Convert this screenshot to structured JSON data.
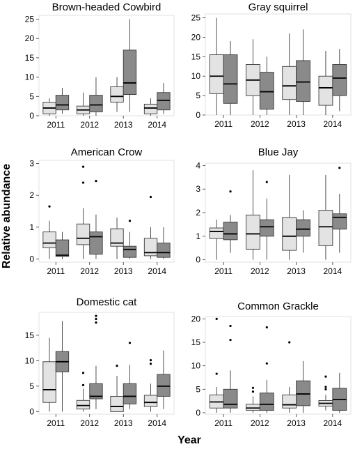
{
  "figure": {
    "xlabel": "Year",
    "ylabel": "Relative abundance"
  },
  "colors": {
    "light_box": "#e3e3e3",
    "dark_box": "#8a8a8a",
    "line": "#3a3a3a",
    "median": "#000000"
  },
  "chart_data": [
    {
      "type": "box",
      "title": "Brown-headed Cowbird",
      "categories": [
        "2011",
        "2012",
        "2013",
        "2014"
      ],
      "yticks": [
        0,
        5,
        10,
        15,
        20,
        25
      ],
      "ylim": [
        0,
        26
      ],
      "series": [
        {
          "style": "light",
          "boxes": [
            {
              "min": 0,
              "q1": 0.5,
              "median": 2,
              "q3": 3.5,
              "max": 4.5,
              "outliers": []
            },
            {
              "min": 0,
              "q1": 0.5,
              "median": 1.5,
              "q3": 2.5,
              "max": 6,
              "outliers": []
            },
            {
              "min": 1,
              "q1": 3.5,
              "median": 5,
              "q3": 7.5,
              "max": 10,
              "outliers": []
            },
            {
              "min": 0,
              "q1": 0.5,
              "median": 2,
              "q3": 3,
              "max": 4.5,
              "outliers": []
            }
          ]
        },
        {
          "style": "dark",
          "boxes": [
            {
              "min": 0.5,
              "q1": 1.5,
              "median": 2.8,
              "q3": 5.3,
              "max": 7.2,
              "outliers": []
            },
            {
              "min": 0,
              "q1": 1,
              "median": 2.8,
              "q3": 5.3,
              "max": 10,
              "outliers": []
            },
            {
              "min": 1,
              "q1": 5.5,
              "median": 8.5,
              "q3": 17,
              "max": 25,
              "outliers": []
            },
            {
              "min": 0.5,
              "q1": 1.5,
              "median": 4,
              "q3": 6,
              "max": 8.5,
              "outliers": []
            }
          ]
        }
      ]
    },
    {
      "type": "box",
      "title": "Gray squirrel",
      "categories": [
        "2011",
        "2012",
        "2013",
        "2014"
      ],
      "yticks": [
        0,
        5,
        10,
        15,
        20,
        25
      ],
      "ylim": [
        0,
        26
      ],
      "series": [
        {
          "style": "light",
          "boxes": [
            {
              "min": 0,
              "q1": 5.5,
              "median": 10,
              "q3": 15.5,
              "max": 25,
              "outliers": []
            },
            {
              "min": 0,
              "q1": 5,
              "median": 9,
              "q3": 13,
              "max": 19.5,
              "outliers": []
            },
            {
              "min": 0,
              "q1": 4,
              "median": 7.5,
              "q3": 12.5,
              "max": 21,
              "outliers": []
            },
            {
              "min": 0,
              "q1": 2.5,
              "median": 7,
              "q3": 10,
              "max": 16.5,
              "outliers": []
            }
          ]
        },
        {
          "style": "dark",
          "boxes": [
            {
              "min": 0,
              "q1": 3,
              "median": 8,
              "q3": 15.5,
              "max": 19,
              "outliers": []
            },
            {
              "min": 0,
              "q1": 1.5,
              "median": 6,
              "q3": 11,
              "max": 15,
              "outliers": []
            },
            {
              "min": 0,
              "q1": 3.5,
              "median": 8.5,
              "q3": 14,
              "max": 22,
              "outliers": []
            },
            {
              "min": 1,
              "q1": 5,
              "median": 9.5,
              "q3": 13,
              "max": 17,
              "outliers": []
            }
          ]
        }
      ]
    },
    {
      "type": "box",
      "title": "American Crow",
      "categories": [
        "2011",
        "2012",
        "2013",
        "2014"
      ],
      "yticks": [
        0,
        1,
        2,
        3
      ],
      "ylim": [
        -0.1,
        3.1
      ],
      "series": [
        {
          "style": "light",
          "boxes": [
            {
              "min": 0,
              "q1": 0.35,
              "median": 0.5,
              "q3": 0.85,
              "max": 1.2,
              "outliers": [
                1.65
              ]
            },
            {
              "min": 0,
              "q1": 0.45,
              "median": 0.65,
              "q3": 1.1,
              "max": 1.6,
              "outliers": [
                2.4,
                2.9
              ]
            },
            {
              "min": 0,
              "q1": 0.4,
              "median": 0.5,
              "q3": 0.95,
              "max": 1.3,
              "outliers": []
            },
            {
              "min": 0,
              "q1": 0.1,
              "median": 0.2,
              "q3": 0.65,
              "max": 1,
              "outliers": [
                1.95
              ]
            }
          ]
        },
        {
          "style": "dark",
          "boxes": [
            {
              "min": 0,
              "q1": 0.08,
              "median": 0.12,
              "q3": 0.6,
              "max": 0.85,
              "outliers": []
            },
            {
              "min": 0,
              "q1": 0.15,
              "median": 0.7,
              "q3": 0.85,
              "max": 1.4,
              "outliers": [
                2.45
              ]
            },
            {
              "min": 0,
              "q1": 0.05,
              "median": 0.3,
              "q3": 0.4,
              "max": 0.85,
              "outliers": [
                1.2
              ]
            },
            {
              "min": 0,
              "q1": 0.05,
              "median": 0.2,
              "q3": 0.5,
              "max": 1,
              "outliers": []
            }
          ]
        }
      ]
    },
    {
      "type": "box",
      "title": "Blue Jay",
      "categories": [
        "2011",
        "2012",
        "2013",
        "2014"
      ],
      "yticks": [
        0,
        1,
        2,
        3,
        4
      ],
      "ylim": [
        -0.1,
        4.1
      ],
      "series": [
        {
          "style": "light",
          "boxes": [
            {
              "min": 0,
              "q1": 0.9,
              "median": 1.2,
              "q3": 1.35,
              "max": 1.7,
              "outliers": []
            },
            {
              "min": 0,
              "q1": 0.45,
              "median": 1.1,
              "q3": 1.9,
              "max": 3.8,
              "outliers": []
            },
            {
              "min": 0,
              "q1": 0.4,
              "median": 1,
              "q3": 1.8,
              "max": 3.6,
              "outliers": []
            },
            {
              "min": 0,
              "q1": 0.6,
              "median": 1.4,
              "q3": 2.1,
              "max": 3.6,
              "outliers": []
            }
          ]
        },
        {
          "style": "dark",
          "boxes": [
            {
              "min": 0.3,
              "q1": 0.85,
              "median": 1.1,
              "q3": 1.6,
              "max": 1.9,
              "outliers": [
                2.9
              ]
            },
            {
              "min": 0,
              "q1": 1,
              "median": 1.4,
              "q3": 1.7,
              "max": 2.6,
              "outliers": [
                3.3
              ]
            },
            {
              "min": 0.3,
              "q1": 1,
              "median": 1.3,
              "q3": 1.7,
              "max": 2.1,
              "outliers": []
            },
            {
              "min": 0.3,
              "q1": 1.3,
              "median": 1.8,
              "q3": 1.95,
              "max": 2.8,
              "outliers": [
                3.9
              ]
            }
          ]
        }
      ]
    },
    {
      "type": "box",
      "title": "Domestic cat",
      "categories": [
        "2011",
        "2012",
        "2013",
        "2014"
      ],
      "yticks": [
        0,
        5,
        10,
        15
      ],
      "ylim": [
        -0.5,
        19.5
      ],
      "series": [
        {
          "style": "light",
          "boxes": [
            {
              "min": 0,
              "q1": 1.8,
              "median": 4.3,
              "q3": 9.8,
              "max": 14.5,
              "outliers": []
            },
            {
              "min": 0,
              "q1": 0.5,
              "median": 1.2,
              "q3": 2.2,
              "max": 4.5,
              "outliers": [
                5.2,
                7.6
              ]
            },
            {
              "min": 0,
              "q1": 0,
              "median": 1,
              "q3": 3,
              "max": 7,
              "outliers": [
                9
              ]
            },
            {
              "min": 0,
              "q1": 1,
              "median": 1.8,
              "q3": 3.2,
              "max": 5.5,
              "outliers": [
                9.4,
                10.1
              ]
            }
          ]
        },
        {
          "style": "dark",
          "boxes": [
            {
              "min": 0,
              "q1": 7.8,
              "median": 9.8,
              "q3": 11.8,
              "max": 17.8,
              "outliers": []
            },
            {
              "min": 0.5,
              "q1": 2.5,
              "median": 3,
              "q3": 5.5,
              "max": 9,
              "outliers": [
                17.5,
                18.2,
                18.8
              ]
            },
            {
              "min": 0.5,
              "q1": 1.5,
              "median": 3,
              "q3": 5.5,
              "max": 9.2,
              "outliers": [
                13.5
              ]
            },
            {
              "min": 0.5,
              "q1": 3,
              "median": 5,
              "q3": 7.3,
              "max": 12,
              "outliers": []
            }
          ]
        }
      ]
    },
    {
      "type": "box",
      "title": "Common Grackle",
      "categories": [
        "2011",
        "2012",
        "2013",
        "2014"
      ],
      "yticks": [
        0,
        5,
        10,
        15,
        20
      ],
      "ylim": [
        -0.3,
        20.5
      ],
      "series": [
        {
          "style": "light",
          "boxes": [
            {
              "min": 0,
              "q1": 1,
              "median": 2.3,
              "q3": 3.8,
              "max": 5.5,
              "outliers": [
                8.3,
                20
              ]
            },
            {
              "min": 0,
              "q1": 0.5,
              "median": 1,
              "q3": 1.8,
              "max": 3.5,
              "outliers": [
                4.5,
                5.3
              ]
            },
            {
              "min": 0,
              "q1": 1,
              "median": 1.7,
              "q3": 3.8,
              "max": 5.5,
              "outliers": [
                15
              ]
            },
            {
              "min": 0.5,
              "q1": 1.4,
              "median": 2,
              "q3": 2.6,
              "max": 3.8,
              "outliers": [
                5,
                5.5,
                7.7
              ]
            }
          ]
        },
        {
          "style": "dark",
          "boxes": [
            {
              "min": 0,
              "q1": 1,
              "median": 1.8,
              "q3": 5,
              "max": 9,
              "outliers": [
                15.5,
                18.5
              ]
            },
            {
              "min": 0,
              "q1": 0.5,
              "median": 1.8,
              "q3": 4.2,
              "max": 7,
              "outliers": [
                10.5,
                18.2
              ]
            },
            {
              "min": 0,
              "q1": 1.5,
              "median": 4,
              "q3": 6.8,
              "max": 11,
              "outliers": []
            },
            {
              "min": 0,
              "q1": 0.5,
              "median": 2.8,
              "q3": 5.2,
              "max": 8.5,
              "outliers": []
            }
          ]
        }
      ]
    }
  ]
}
